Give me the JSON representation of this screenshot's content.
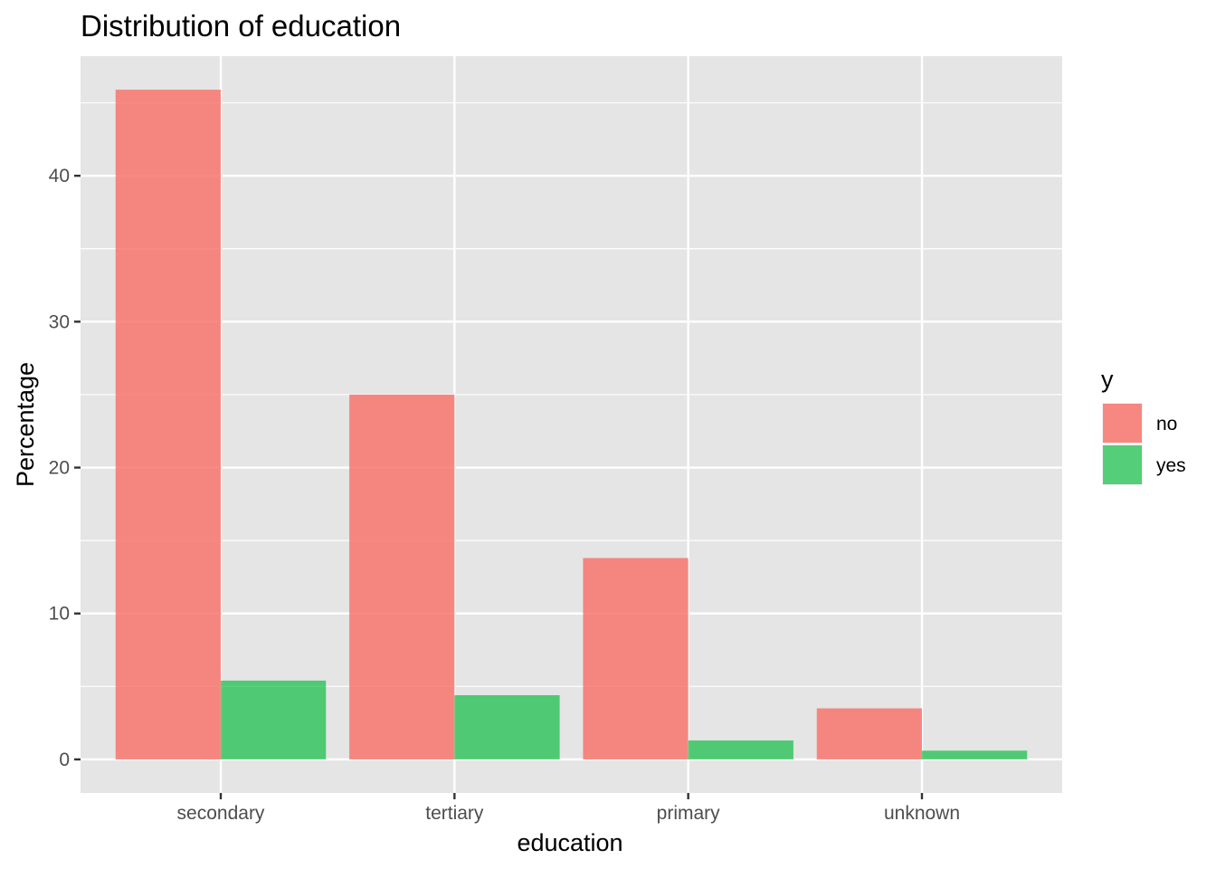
{
  "chart_data": {
    "type": "bar",
    "title": "Distribution of education",
    "xlabel": "education",
    "ylabel": "Percentage",
    "categories": [
      "secondary",
      "tertiary",
      "primary",
      "unknown"
    ],
    "series": [
      {
        "name": "no",
        "values": [
          45.9,
          25.0,
          13.8,
          3.5
        ]
      },
      {
        "name": "yes",
        "values": [
          5.4,
          4.4,
          1.3,
          0.6
        ]
      }
    ],
    "y_ticks": [
      0,
      10,
      20,
      30,
      40
    ],
    "ylim": [
      -2.3,
      48.2
    ],
    "legend": {
      "title": "y",
      "position": "right"
    },
    "grid": true,
    "colors": {
      "no": "#F8766D",
      "yes": "#00BA38",
      "panel": "#E5E5E5",
      "grid": "#FFFFFF"
    }
  }
}
